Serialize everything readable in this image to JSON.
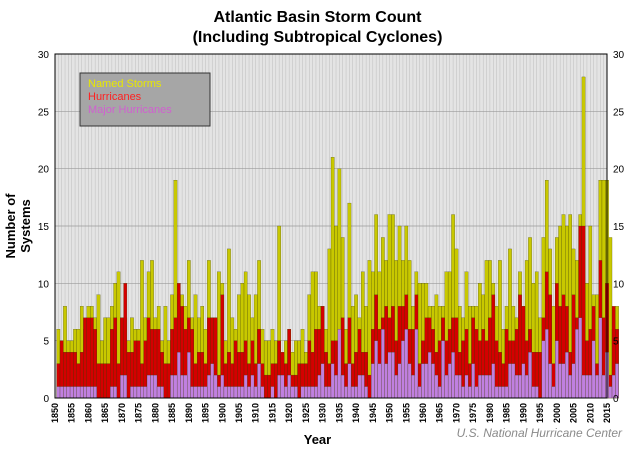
{
  "chart_data": {
    "type": "bar",
    "title": "Atlantic Basin Storm Count",
    "subtitle": "(Including Subtropical Cyclones)",
    "xlabel": "Year",
    "ylabel": "Number of Systems",
    "credit": "U.S. National Hurricane Center",
    "ylim": [
      0,
      30
    ],
    "xlim": [
      1850,
      2015
    ],
    "yticks": [
      0,
      5,
      10,
      15,
      20,
      25,
      30
    ],
    "xticks": [
      1850,
      1855,
      1860,
      1865,
      1870,
      1875,
      1880,
      1885,
      1890,
      1895,
      1900,
      1905,
      1910,
      1915,
      1920,
      1925,
      1930,
      1935,
      1940,
      1945,
      1950,
      1955,
      1960,
      1965,
      1970,
      1975,
      1980,
      1985,
      1990,
      1995,
      2000,
      2005,
      2010,
      2015
    ],
    "grid": true,
    "legend_position": "top-left",
    "start_year": 1851,
    "series": [
      {
        "name": "Named Storms",
        "color": "#c8c800",
        "label_color": "#e8e800",
        "values": [
          6,
          5,
          8,
          5,
          5,
          6,
          6,
          8,
          6,
          8,
          8,
          7,
          9,
          5,
          7,
          7,
          8,
          10,
          11,
          7,
          7,
          5,
          7,
          6,
          6,
          12,
          7,
          11,
          12,
          7,
          8,
          5,
          8,
          5,
          9,
          19,
          9,
          9,
          8,
          12,
          7,
          9,
          7,
          8,
          6,
          12,
          7,
          7,
          11,
          10,
          5,
          13,
          7,
          6,
          9,
          10,
          11,
          9,
          7,
          9,
          12,
          6,
          5,
          5,
          6,
          5,
          15,
          1,
          5,
          6,
          4,
          5,
          5,
          6,
          4,
          9,
          11,
          11,
          8,
          8,
          6,
          13,
          21,
          15,
          20,
          14,
          6,
          17,
          8,
          9,
          7,
          11,
          8,
          12,
          11,
          16,
          11,
          14,
          12,
          16,
          16,
          12,
          15,
          12,
          15,
          12,
          8,
          11,
          10,
          10,
          10,
          8,
          8,
          9,
          8,
          8,
          11,
          11,
          16,
          13,
          8,
          7,
          11,
          8,
          8,
          8,
          10,
          9,
          12,
          12,
          10,
          8,
          12,
          6,
          8,
          13,
          8,
          7,
          11,
          8,
          12,
          14,
          10,
          11,
          7,
          14,
          19,
          13,
          8,
          14,
          15,
          16,
          15,
          16,
          13,
          12,
          16,
          28,
          10,
          15,
          9,
          9,
          19,
          19,
          19,
          14,
          6,
          8
        ]
      },
      {
        "name": "Hurricanes",
        "color": "#d40000",
        "label_color": "#ff2020",
        "values": [
          3,
          5,
          4,
          4,
          4,
          4,
          3,
          4,
          7,
          7,
          7,
          6,
          3,
          3,
          3,
          3,
          6,
          7,
          3,
          7,
          10,
          4,
          4,
          5,
          5,
          3,
          5,
          7,
          6,
          6,
          6,
          4,
          3,
          3,
          6,
          7,
          10,
          8,
          6,
          7,
          6,
          3,
          4,
          4,
          3,
          7,
          7,
          7,
          2,
          9,
          3,
          4,
          3,
          5,
          4,
          4,
          5,
          3,
          5,
          3,
          6,
          3,
          2,
          2,
          3,
          3,
          5,
          4,
          3,
          6,
          2,
          2,
          3,
          3,
          3,
          5,
          4,
          6,
          6,
          8,
          4,
          3,
          5,
          5,
          5,
          7,
          3,
          7,
          3,
          4,
          6,
          4,
          4,
          2,
          6,
          9,
          6,
          7,
          8,
          7,
          8,
          5,
          8,
          8,
          9,
          6,
          6,
          9,
          3,
          5,
          7,
          7,
          6,
          4,
          5,
          7,
          5,
          6,
          7,
          7,
          4,
          5,
          6,
          3,
          7,
          6,
          5,
          6,
          5,
          7,
          9,
          5,
          4,
          3,
          6,
          5,
          5,
          6,
          9,
          8,
          5,
          6,
          4,
          4,
          4,
          7,
          11,
          9,
          3,
          10,
          8,
          9,
          8,
          4,
          9,
          7,
          15,
          15,
          5,
          6,
          8,
          3,
          12,
          7,
          10,
          2,
          8,
          6
        ]
      },
      {
        "name": "Major Hurricanes",
        "color": "#c080e0",
        "label_color": "#d060d0",
        "values": [
          1,
          1,
          1,
          1,
          1,
          1,
          1,
          1,
          1,
          1,
          1,
          1,
          0,
          0,
          0,
          0,
          1,
          1,
          0,
          2,
          2,
          0,
          1,
          1,
          1,
          1,
          1,
          2,
          2,
          2,
          1,
          1,
          0,
          0,
          2,
          2,
          4,
          2,
          2,
          4,
          1,
          1,
          1,
          1,
          1,
          2,
          3,
          2,
          1,
          2,
          1,
          1,
          1,
          1,
          1,
          1,
          2,
          1,
          2,
          1,
          3,
          1,
          0,
          0,
          1,
          0,
          2,
          2,
          1,
          2,
          1,
          1,
          0,
          1,
          1,
          1,
          1,
          1,
          2,
          3,
          1,
          1,
          3,
          2,
          6,
          2,
          1,
          3,
          1,
          1,
          2,
          2,
          1,
          0,
          3,
          5,
          3,
          6,
          3,
          4,
          4,
          2,
          3,
          5,
          6,
          3,
          2,
          6,
          1,
          3,
          3,
          4,
          3,
          2,
          1,
          5,
          2,
          3,
          4,
          2,
          2,
          1,
          2,
          1,
          3,
          1,
          2,
          2,
          2,
          2,
          3,
          1,
          1,
          1,
          1,
          3,
          3,
          2,
          2,
          3,
          2,
          4,
          1,
          1,
          0,
          5,
          6,
          3,
          1,
          5,
          3,
          3,
          4,
          2,
          3,
          6,
          7,
          2,
          2,
          2,
          5,
          2,
          7,
          2,
          4,
          1,
          2,
          3
        ]
      }
    ]
  }
}
